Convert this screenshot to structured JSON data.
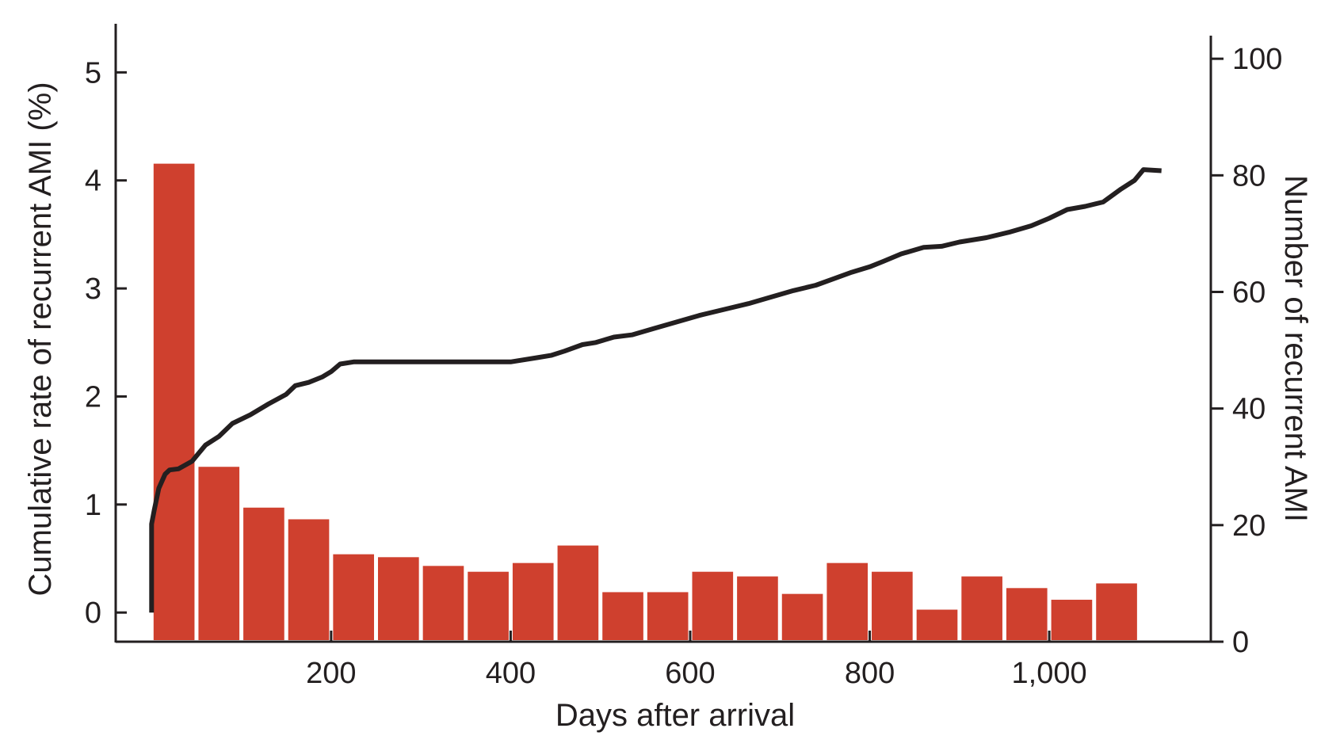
{
  "chart_data": {
    "type": "bar",
    "xlabel": "Days after arrival",
    "ylabel_left": "Cumulative rate of recurrent AMI (%)",
    "ylabel_right": "Number of recurrent AMI",
    "x_tick_labels": [
      "200",
      "400",
      "600",
      "800",
      "1,000"
    ],
    "x_ticks": [
      200,
      400,
      600,
      800,
      1000
    ],
    "xlim": [
      -40,
      1180
    ],
    "left_axis": {
      "ylim": [
        -0.27,
        5.45
      ],
      "ticks": [
        0,
        1,
        2,
        3,
        4,
        5
      ],
      "tick_labels": [
        "0",
        "1",
        "2",
        "3",
        "4",
        "5"
      ]
    },
    "right_axis": {
      "ylim": [
        0,
        106
      ],
      "ticks": [
        0,
        20,
        40,
        60,
        80,
        100
      ],
      "tick_labels": [
        "0",
        "20",
        "40",
        "60",
        "80",
        "100"
      ]
    },
    "series": [
      {
        "type": "bar",
        "axis": "right",
        "color": "#cf402e",
        "bin_width_days": 50,
        "bin_starts": [
          0,
          50,
          100,
          150,
          200,
          250,
          300,
          350,
          400,
          450,
          500,
          550,
          600,
          650,
          700,
          750,
          800,
          850,
          900,
          950,
          1000,
          1050
        ],
        "values": [
          82,
          30,
          23,
          21,
          15,
          14.5,
          13,
          12,
          13.5,
          16.5,
          8.5,
          8.5,
          12,
          11.2,
          8.2,
          13.5,
          12,
          5.5,
          11.2,
          9.2,
          7.2,
          10
        ]
      },
      {
        "type": "line",
        "axis": "left",
        "color": "#231f20",
        "x": [
          0,
          0,
          3,
          8,
          15,
          20,
          30,
          45,
          60,
          75,
          90,
          110,
          130,
          150,
          160,
          175,
          190,
          200,
          210,
          225,
          260,
          300,
          350,
          400,
          430,
          445,
          460,
          480,
          495,
          515,
          535,
          560,
          585,
          610,
          640,
          665,
          690,
          715,
          740,
          760,
          780,
          800,
          815,
          835,
          860,
          880,
          900,
          930,
          955,
          980,
          1000,
          1020,
          1040,
          1060,
          1080,
          1095,
          1105,
          1125
        ],
        "y": [
          0,
          0.82,
          0.95,
          1.15,
          1.28,
          1.32,
          1.33,
          1.4,
          1.55,
          1.63,
          1.75,
          1.83,
          1.93,
          2.02,
          2.1,
          2.13,
          2.18,
          2.23,
          2.3,
          2.32,
          2.32,
          2.32,
          2.32,
          2.32,
          2.36,
          2.38,
          2.42,
          2.48,
          2.5,
          2.55,
          2.57,
          2.63,
          2.69,
          2.75,
          2.81,
          2.86,
          2.92,
          2.98,
          3.03,
          3.09,
          3.15,
          3.2,
          3.25,
          3.32,
          3.38,
          3.39,
          3.43,
          3.47,
          3.52,
          3.58,
          3.65,
          3.73,
          3.76,
          3.8,
          3.92,
          4.0,
          4.1,
          4.09
        ]
      }
    ]
  }
}
